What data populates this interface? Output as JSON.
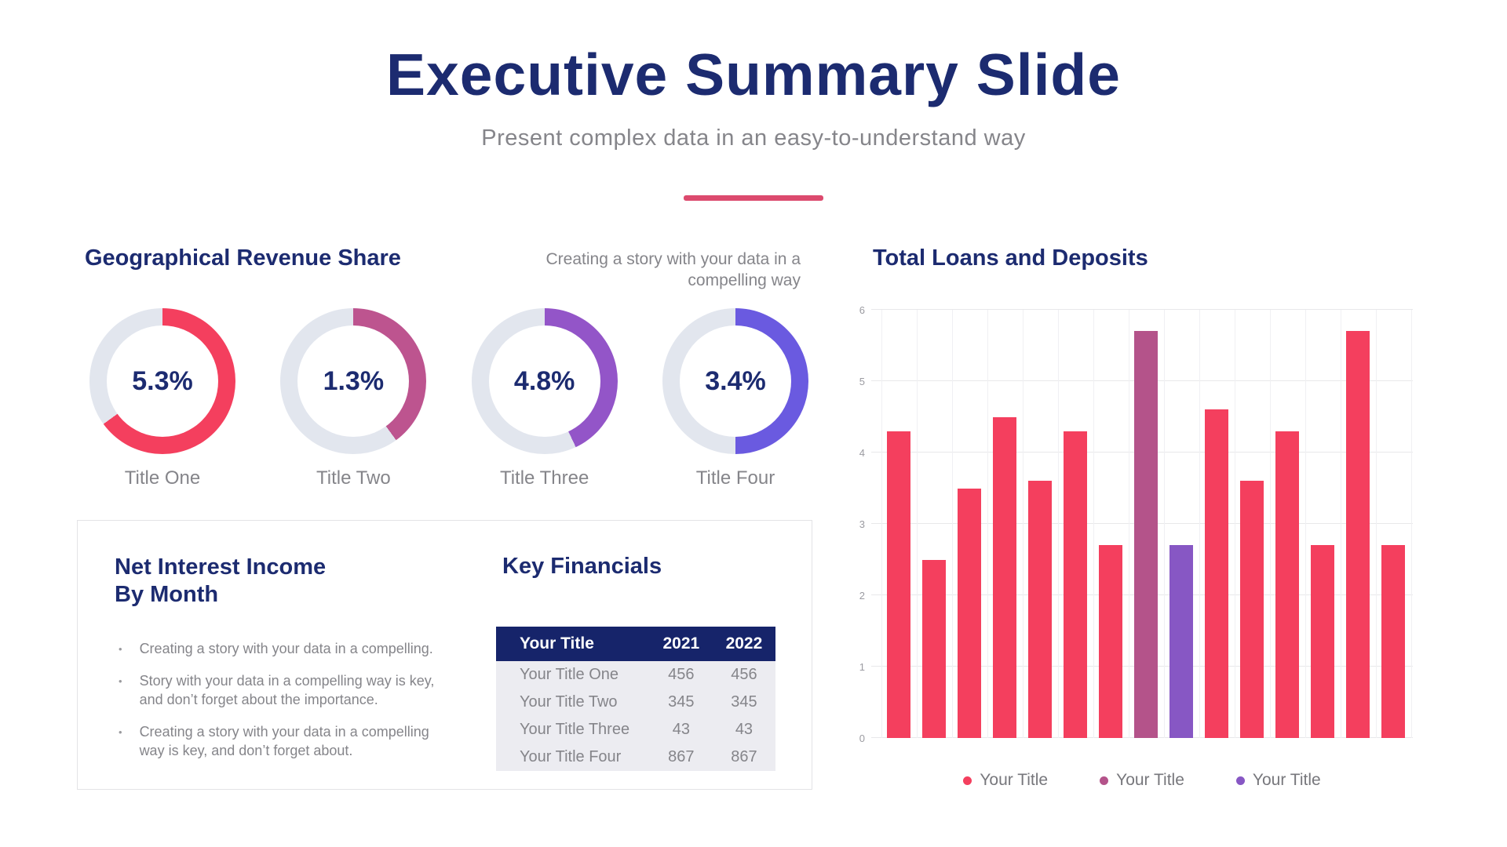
{
  "header": {
    "title": "Executive Summary Slide",
    "subtitle": "Present complex data in an easy-to-understand way",
    "divider_color": "#dc4a6e"
  },
  "note": {
    "line1": "Creating a story with your data in a",
    "line2": "compelling way"
  },
  "net_interest": {
    "heading_line1": "Net Interest Income",
    "heading_line2": "By Month",
    "bullets": [
      "Creating a story with your data in a compelling.",
      "Story with your data in a compelling way is key, and don’t forget about the importance.",
      "Creating a story with your data in a compelling way is key, and don’t forget about."
    ]
  },
  "colors": {
    "navy": "#1c2b70",
    "gray_text": "#85858a",
    "donut_track": "#e2e6ee",
    "table_header_bg": "#16246a",
    "table_row_bg": "#ececf1",
    "grid_line": "#e8e8ea"
  },
  "chart_data": [
    {
      "type": "pie",
      "title": "Geographical Revenue Share",
      "subtype": "donut-gauges",
      "gauges": [
        {
          "label": "Title One",
          "value_label": "5.3%",
          "fill_percent": 65,
          "color": "#f43f5e"
        },
        {
          "label": "Title Two",
          "value_label": "1.3%",
          "fill_percent": 40,
          "color": "#bd548f"
        },
        {
          "label": "Title Three",
          "value_label": "4.8%",
          "fill_percent": 43,
          "color": "#9355c8"
        },
        {
          "label": "Title Four",
          "value_label": "3.4%",
          "fill_percent": 50,
          "color": "#6a5ae0"
        }
      ]
    },
    {
      "type": "bar",
      "title": "Total Loans and Deposits",
      "values": [
        4.3,
        2.5,
        3.5,
        4.5,
        3.6,
        4.3,
        2.7,
        5.7,
        2.7,
        4.6,
        3.6,
        4.3,
        2.7,
        5.7,
        2.7
      ],
      "bar_colors": [
        "#f43f5e",
        "#f43f5e",
        "#f43f5e",
        "#f43f5e",
        "#f43f5e",
        "#f43f5e",
        "#f43f5e",
        "#b4538a",
        "#8757c4",
        "#f43f5e",
        "#f43f5e",
        "#f43f5e",
        "#f43f5e",
        "#f43f5e",
        "#f43f5e"
      ],
      "ylim": [
        0,
        6
      ],
      "yticks": [
        0,
        1,
        2,
        3,
        4,
        5,
        6
      ],
      "grid": true,
      "legend": [
        {
          "label": "Your Title",
          "color": "#f43f5e"
        },
        {
          "label": "Your Title",
          "color": "#b4538a"
        },
        {
          "label": "Your Title",
          "color": "#8757c4"
        }
      ],
      "legend_position": "bottom"
    },
    {
      "type": "table",
      "title": "Key Financials",
      "columns": [
        "Your Title",
        "2021",
        "2022"
      ],
      "rows": [
        [
          "Your Title One",
          "456",
          "456"
        ],
        [
          "Your Title Two",
          "345",
          "345"
        ],
        [
          "Your Title Three",
          "43",
          "43"
        ],
        [
          "Your Title Four",
          "867",
          "867"
        ]
      ]
    }
  ]
}
